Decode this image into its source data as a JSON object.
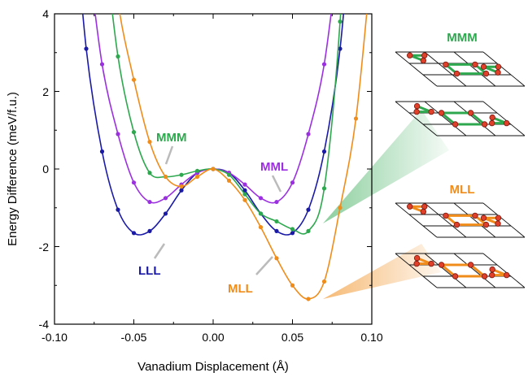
{
  "chart_data": {
    "type": "line",
    "xlabel": "Vanadium Displacement (Å)",
    "ylabel": "Energy Difference (meV/f.u.)",
    "xlim": [
      -0.1,
      0.1
    ],
    "ylim": [
      -4,
      4
    ],
    "x_ticks": [
      "-0.10",
      "-0.05",
      "0.00",
      "0.05",
      "0.10"
    ],
    "y_ticks": [
      "-4",
      "-2",
      "0",
      "2",
      "4"
    ],
    "grid": false,
    "series": [
      {
        "name": "LLL",
        "color": "#1a1aa6",
        "x": [
          -0.08,
          -0.07,
          -0.06,
          -0.05,
          -0.04,
          -0.03,
          -0.02,
          -0.01,
          0.0,
          0.01,
          0.02,
          0.03,
          0.04,
          0.05,
          0.06,
          0.07,
          0.08
        ],
        "y": [
          3.1,
          0.45,
          -1.05,
          -1.65,
          -1.6,
          -1.15,
          -0.55,
          -0.1,
          0.0,
          -0.1,
          -0.55,
          -1.15,
          -1.6,
          -1.65,
          -1.05,
          0.45,
          3.1
        ]
      },
      {
        "name": "MML",
        "color": "#9b30e0",
        "x": [
          -0.07,
          -0.06,
          -0.05,
          -0.04,
          -0.03,
          -0.02,
          -0.01,
          0.0,
          0.01,
          0.02,
          0.03,
          0.04,
          0.05,
          0.06,
          0.07
        ],
        "y": [
          2.7,
          0.9,
          -0.35,
          -0.85,
          -0.75,
          -0.4,
          -0.1,
          0.0,
          -0.1,
          -0.4,
          -0.75,
          -0.85,
          -0.35,
          0.9,
          2.7
        ]
      },
      {
        "name": "MMM",
        "color": "#2ea84f",
        "x": [
          -0.06,
          -0.05,
          -0.04,
          -0.03,
          -0.02,
          -0.01,
          0.0,
          0.01,
          0.02,
          0.03,
          0.04,
          0.05,
          0.06,
          0.07,
          0.08
        ],
        "y": [
          2.9,
          0.95,
          -0.1,
          -0.2,
          -0.15,
          -0.05,
          0.0,
          -0.15,
          -0.65,
          -1.15,
          -1.35,
          -1.55,
          -1.6,
          -0.5,
          3.8
        ]
      },
      {
        "name": "MLL",
        "color": "#f08c1a",
        "x": [
          -0.06,
          -0.05,
          -0.04,
          -0.03,
          -0.02,
          -0.01,
          0.0,
          0.01,
          0.02,
          0.03,
          0.04,
          0.05,
          0.06,
          0.07,
          0.08,
          0.09
        ],
        "y": [
          4.3,
          2.3,
          0.7,
          -0.2,
          -0.45,
          -0.2,
          0.0,
          -0.3,
          -0.8,
          -1.5,
          -2.3,
          -3.0,
          -3.35,
          -2.9,
          -1.0,
          1.3
        ]
      }
    ]
  },
  "labels": {
    "mmm": "MMM",
    "mml": "MML",
    "lll": "LLL",
    "mll": "MLL"
  },
  "insets": {
    "top_title": "MMM",
    "bottom_title": "MLL",
    "top_color": "#2ea84f",
    "bottom_color": "#f08c1a"
  }
}
